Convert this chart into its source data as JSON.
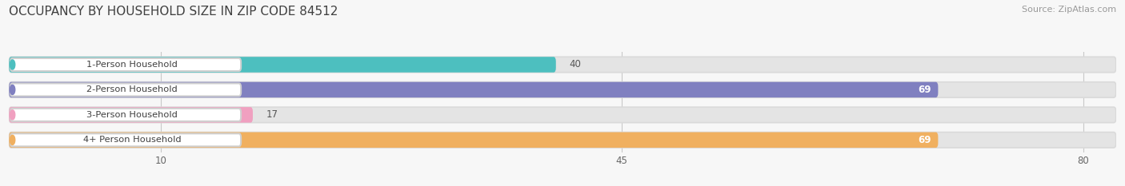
{
  "title": "OCCUPANCY BY HOUSEHOLD SIZE IN ZIP CODE 84512",
  "source": "Source: ZipAtlas.com",
  "categories": [
    "1-Person Household",
    "2-Person Household",
    "3-Person Household",
    "4+ Person Household"
  ],
  "values": [
    40,
    69,
    17,
    69
  ],
  "bar_colors": [
    "#4DBFBF",
    "#8080C0",
    "#F0A0C0",
    "#F0B060"
  ],
  "label_border_colors": [
    "#4DBFBF",
    "#8080C0",
    "#F0A0C0",
    "#F0B060"
  ],
  "value_label_white": [
    false,
    true,
    false,
    true
  ],
  "xlim_data": [
    0,
    80
  ],
  "xticks": [
    10,
    45,
    80
  ],
  "background_color": "#F7F7F7",
  "bar_track_color": "#E4E4E4",
  "title_fontsize": 11,
  "source_fontsize": 8,
  "bar_height": 0.62
}
